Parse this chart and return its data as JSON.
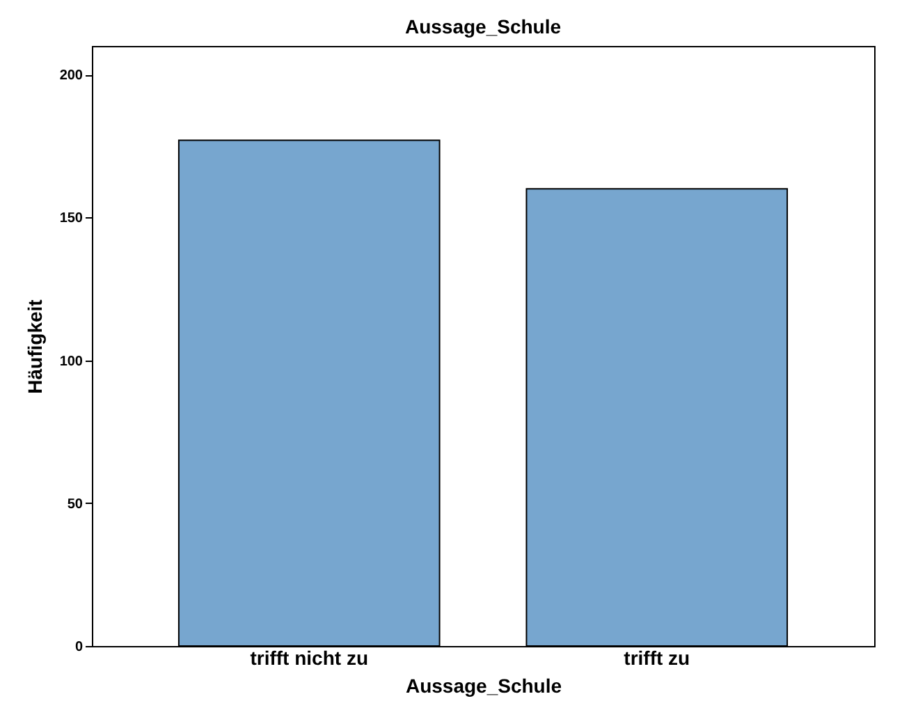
{
  "chart_data": {
    "type": "bar",
    "title": "Aussage_Schule",
    "xlabel": "Aussage_Schule",
    "ylabel": "Häufigkeit",
    "categories": [
      "trifft nicht zu",
      "trifft zu"
    ],
    "values": [
      177,
      160
    ],
    "color": "#77a6cf",
    "ylim": [
      0,
      210
    ],
    "yticks": [
      0,
      50,
      100,
      150,
      200
    ],
    "grid": false
  }
}
